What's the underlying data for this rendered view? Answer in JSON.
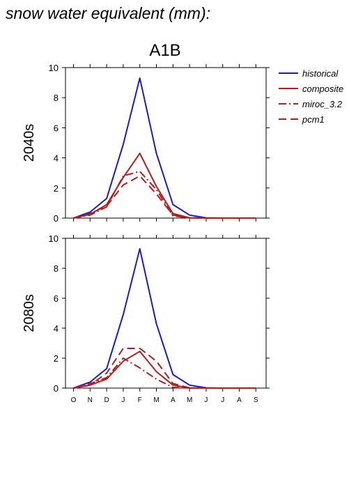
{
  "header": {
    "title": "snow water equivalent (mm):",
    "scenario": "A1B"
  },
  "colors": {
    "historical": "#1c1cbc",
    "scenario": "#b21c1c"
  },
  "chart_data": [
    {
      "type": "line",
      "panel": "2040s",
      "ylabel": "2040s",
      "categories": [
        "O",
        "N",
        "D",
        "J",
        "F",
        "M",
        "A",
        "M",
        "J",
        "J",
        "A",
        "S"
      ],
      "ylim": [
        0,
        10
      ],
      "yticks": [
        0,
        2,
        4,
        6,
        8,
        10
      ],
      "series": [
        {
          "name": "historical",
          "dash": "solid",
          "color": "#1c1cbc",
          "values": [
            0,
            0.4,
            1.3,
            4.9,
            9.3,
            4.3,
            0.9,
            0.2,
            0.02,
            0,
            0,
            0
          ]
        },
        {
          "name": "composite",
          "dash": "solid",
          "color": "#b21c1c",
          "values": [
            0,
            0.25,
            0.9,
            2.7,
            4.3,
            2.1,
            0.3,
            0.02,
            0,
            0,
            0,
            0
          ]
        },
        {
          "name": "miroc_3.2",
          "dash": "dashdot",
          "color": "#b21c1c",
          "values": [
            0,
            0.2,
            0.75,
            2.8,
            3.1,
            1.9,
            0.15,
            0.01,
            0,
            0,
            0,
            0
          ]
        },
        {
          "name": "pcm1",
          "dash": "dash",
          "color": "#b21c1c",
          "values": [
            0,
            0.3,
            0.8,
            2.2,
            2.8,
            1.6,
            0.2,
            0.02,
            0,
            0,
            0,
            0
          ]
        }
      ]
    },
    {
      "type": "line",
      "panel": "2080s",
      "ylabel": "2080s",
      "categories": [
        "O",
        "N",
        "D",
        "J",
        "F",
        "M",
        "A",
        "M",
        "J",
        "J",
        "A",
        "S"
      ],
      "ylim": [
        0,
        10
      ],
      "yticks": [
        0,
        2,
        4,
        6,
        8,
        10
      ],
      "series": [
        {
          "name": "historical",
          "dash": "solid",
          "color": "#1c1cbc",
          "values": [
            0,
            0.4,
            1.3,
            4.9,
            9.3,
            4.3,
            0.9,
            0.2,
            0.02,
            0,
            0,
            0
          ]
        },
        {
          "name": "composite",
          "dash": "solid",
          "color": "#b21c1c",
          "values": [
            0,
            0.2,
            0.6,
            1.8,
            2.45,
            1.1,
            0.2,
            0.01,
            0,
            0,
            0,
            0
          ]
        },
        {
          "name": "miroc_3.2",
          "dash": "dashdot",
          "color": "#b21c1c",
          "values": [
            0,
            0.3,
            0.7,
            2.0,
            1.35,
            0.6,
            0.05,
            0,
            0,
            0,
            0,
            0
          ]
        },
        {
          "name": "pcm1",
          "dash": "dash",
          "color": "#b21c1c",
          "values": [
            0,
            0.2,
            1.0,
            2.65,
            2.65,
            1.8,
            0.3,
            0.02,
            0,
            0,
            0,
            0
          ]
        }
      ]
    }
  ],
  "legend": {
    "placement": "right",
    "entries": [
      {
        "label": "historical",
        "dash": "solid",
        "color": "#1c1cbc"
      },
      {
        "label": "composite",
        "dash": "solid",
        "color": "#b21c1c"
      },
      {
        "label": "miroc_3.2",
        "dash": "dashdot",
        "color": "#b21c1c"
      },
      {
        "label": "pcm1",
        "dash": "dash",
        "color": "#b21c1c"
      }
    ]
  }
}
